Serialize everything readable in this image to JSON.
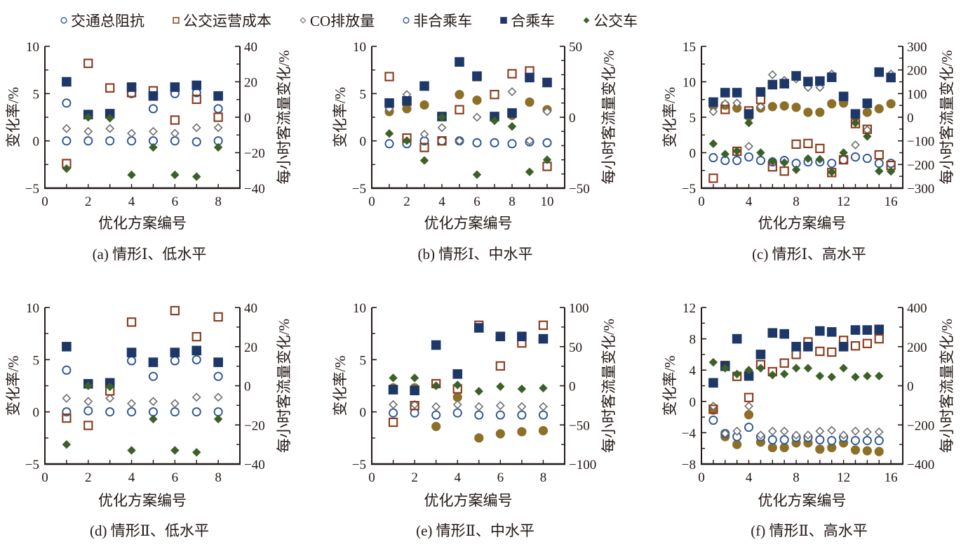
{
  "legend": [
    {
      "label": "交通总阻抗",
      "marker": "open-circle",
      "color": "#2b5597"
    },
    {
      "label": "公交运营成本",
      "marker": "open-square",
      "color": "#8b3a1a"
    },
    {
      "label": "CO排放量",
      "marker": "open-diamond",
      "color": "#6e6e6e"
    },
    {
      "label": "非合乘车",
      "marker": "open-circle",
      "color": "#2b5597"
    },
    {
      "label": "合乘车",
      "marker": "filled-square",
      "color": "#1c3768"
    },
    {
      "label": "公交车",
      "marker": "filled-diamond",
      "color": "#3b6128"
    }
  ],
  "colors": {
    "axis": "#231815",
    "impedance_filled": "#8c7028"
  },
  "chart_data": [
    {
      "type": "scatter",
      "id": "a",
      "caption": "(a)  情形Ⅰ、低水平",
      "xlabel": "优化方案编号",
      "ylabel": "变化率/%",
      "y2label": "每小时客流量变化/%",
      "xlim": [
        0,
        9
      ],
      "xticks": [
        0,
        2,
        4,
        6,
        8
      ],
      "ylim": [
        -5,
        10
      ],
      "yticks": [
        -5,
        0,
        5,
        10
      ],
      "y2lim": [
        -40,
        40
      ],
      "y2ticks": [
        -40,
        -20,
        0,
        20,
        40
      ],
      "x": [
        1,
        2,
        3,
        4,
        5,
        6,
        7,
        8
      ],
      "series": [
        {
          "name": "交通总阻抗",
          "axis": "left",
          "marker": "open-circle",
          "values": [
            4.0,
            null,
            null,
            5.0,
            3.4,
            5.0,
            5.1,
            3.4
          ]
        },
        {
          "name": "公交运营成本",
          "axis": "left",
          "marker": "open-square",
          "values": [
            -2.4,
            8.2,
            5.6,
            5.1,
            5.3,
            2.2,
            4.4,
            2.5
          ]
        },
        {
          "name": "CO排放量",
          "axis": "left",
          "marker": "open-diamond",
          "values": [
            1.3,
            1.0,
            1.3,
            0.8,
            1.0,
            0.8,
            1.4,
            1.4
          ]
        },
        {
          "name": "非合乘车",
          "axis": "left",
          "marker": "open-circle",
          "values": [
            0.0,
            0.0,
            0.0,
            0.0,
            0.0,
            0.0,
            -0.1,
            0.0
          ]
        },
        {
          "name": "合乘车",
          "axis": "right",
          "marker": "filled-square",
          "values": [
            20.0,
            1.5,
            2.0,
            17.0,
            12.0,
            17.0,
            18.0,
            12.0
          ]
        },
        {
          "name": "公交车",
          "axis": "right",
          "marker": "filled-diamond",
          "values": [
            -29.0,
            0.0,
            -0.5,
            -32.5,
            -17.0,
            -32.5,
            -33.5,
            -17.0
          ]
        }
      ]
    },
    {
      "type": "scatter",
      "id": "b",
      "caption": "(b)  情形Ⅰ、中水平",
      "xlabel": "优化方案编号",
      "ylabel": "变化率/%",
      "y2label": "每小时客流量变化/%",
      "xlim": [
        0,
        11
      ],
      "xticks": [
        0,
        2,
        4,
        6,
        8,
        10
      ],
      "ylim": [
        -5,
        10
      ],
      "yticks": [
        -5,
        0,
        5,
        10
      ],
      "y2lim": [
        -50,
        50
      ],
      "y2ticks": [
        -50,
        0,
        50
      ],
      "x": [
        1,
        2,
        3,
        4,
        5,
        6,
        7,
        8,
        9,
        10
      ],
      "series": [
        {
          "name": "交通总阻抗",
          "axis": "left",
          "marker": "filled-circle",
          "values": [
            3.1,
            3.4,
            3.8,
            null,
            4.9,
            4.3,
            null,
            2.7,
            4.1,
            3.3
          ]
        },
        {
          "name": "公交运营成本",
          "axis": "left",
          "marker": "open-square",
          "values": [
            6.8,
            0.3,
            -0.7,
            0.0,
            3.3,
            6.8,
            4.9,
            7.1,
            7.4,
            -2.7
          ]
        },
        {
          "name": "CO排放量",
          "axis": "left",
          "marker": "open-diamond",
          "values": [
            3.4,
            4.9,
            0.7,
            1.4,
            0.0,
            2.5,
            null,
            5.2,
            0.0,
            3.1
          ]
        },
        {
          "name": "非合乘车",
          "axis": "left",
          "marker": "open-circle",
          "values": [
            -0.3,
            -0.3,
            0.0,
            0.0,
            0.0,
            -0.2,
            -0.2,
            -0.3,
            -0.1,
            -0.2
          ]
        },
        {
          "name": "合乘车",
          "axis": "right",
          "marker": "filled-square",
          "values": [
            10.0,
            11.5,
            22.0,
            0.5,
            39.0,
            29.0,
            0.5,
            3.0,
            28.0,
            24.5
          ]
        },
        {
          "name": "公交车",
          "axis": "right",
          "marker": "filled-diamond",
          "values": [
            -11.5,
            -16.5,
            -30.5,
            0.0,
            null,
            -40.5,
            -2.5,
            -6.5,
            -38.5,
            -30.0
          ]
        }
      ]
    },
    {
      "type": "scatter",
      "id": "c",
      "caption": "(c)  情形Ⅰ、高水平",
      "xlabel": "优化方案编号",
      "ylabel": "变化率/%",
      "y2label": "每小时客流量变化/%",
      "xlim": [
        0,
        17
      ],
      "xticks": [
        0,
        4,
        8,
        12,
        16
      ],
      "ylim": [
        -5,
        15
      ],
      "yticks": [
        -5,
        0,
        5,
        10,
        15
      ],
      "y2lim": [
        -300,
        300
      ],
      "y2ticks": [
        -300,
        -200,
        -100,
        0,
        100,
        200,
        300
      ],
      "x": [
        1,
        2,
        3,
        4,
        5,
        6,
        7,
        8,
        9,
        10,
        11,
        12,
        13,
        14,
        15,
        16
      ],
      "series": [
        {
          "name": "交通总阻抗",
          "axis": "left",
          "marker": "filled-circle",
          "values": [
            6.6,
            6.7,
            6.3,
            5.1,
            6.3,
            6.5,
            6.6,
            6.4,
            5.7,
            5.7,
            6.9,
            7.0,
            5.3,
            5.7,
            6.2,
            6.9
          ]
        },
        {
          "name": "公交运营成本",
          "axis": "left",
          "marker": "open-square",
          "values": [
            -3.6,
            6.1,
            0.2,
            5.9,
            7.5,
            -2.0,
            -2.6,
            1.2,
            1.3,
            0.6,
            -2.8,
            -1.0,
            4.1,
            3.3,
            -0.3,
            -1.8
          ]
        },
        {
          "name": "CO排放量",
          "axis": "left",
          "marker": "open-diamond",
          "values": [
            5.8,
            6.9,
            7.0,
            0.9,
            6.5,
            11.0,
            10.2,
            10.4,
            9.2,
            9.2,
            11.1,
            null,
            1.1,
            3.2,
            11.4,
            11.1
          ]
        },
        {
          "name": "非合乘车",
          "axis": "left",
          "marker": "open-circle",
          "values": [
            -0.7,
            -1.1,
            -1.1,
            -0.6,
            -1.1,
            -1.3,
            -1.1,
            -1.5,
            -1.3,
            -1.3,
            -1.5,
            -1.0,
            -0.6,
            -0.8,
            -1.5,
            -1.5
          ]
        },
        {
          "name": "合乘车",
          "axis": "right",
          "marker": "filled-square",
          "values": [
            64,
            104,
            104,
            14,
            107,
            138,
            142,
            175,
            151,
            153,
            169,
            88,
            14,
            59,
            191,
            168
          ]
        },
        {
          "name": "公交车",
          "axis": "right",
          "marker": "filled-diamond",
          "values": [
            -112,
            -156,
            -143,
            -24,
            -150,
            -186,
            -192,
            -222,
            -175,
            -178,
            -232,
            -150,
            -24,
            -81,
            -228,
            -229
          ]
        }
      ]
    },
    {
      "type": "scatter",
      "id": "d",
      "caption": "(d)  情形Ⅱ、低水平",
      "xlabel": "优化方案编号",
      "ylabel": "变化率/%",
      "y2label": "每小时客流量变化/%",
      "xlim": [
        0,
        9
      ],
      "xticks": [
        0,
        2,
        4,
        6,
        8
      ],
      "ylim": [
        -5,
        10
      ],
      "yticks": [
        -5,
        0,
        5,
        10
      ],
      "y2lim": [
        -40,
        40
      ],
      "y2ticks": [
        -40,
        -20,
        0,
        20,
        40
      ],
      "x": [
        1,
        2,
        3,
        4,
        5,
        6,
        7,
        8
      ],
      "series": [
        {
          "name": "交通总阻抗",
          "axis": "left",
          "marker": "open-circle",
          "values": [
            4.0,
            null,
            null,
            4.9,
            3.4,
            4.9,
            5.0,
            3.4
          ]
        },
        {
          "name": "公交运营成本",
          "axis": "left",
          "marker": "open-square",
          "values": [
            -0.6,
            -1.3,
            2.0,
            8.6,
            null,
            9.7,
            7.2,
            9.1
          ]
        },
        {
          "name": "CO排放量",
          "axis": "left",
          "marker": "open-diamond",
          "values": [
            1.3,
            1.0,
            1.3,
            0.8,
            1.0,
            0.8,
            1.4,
            1.4
          ]
        },
        {
          "name": "非合乘车",
          "axis": "left",
          "marker": "open-circle",
          "values": [
            0.0,
            0.1,
            0.0,
            0.0,
            0.0,
            0.0,
            0.0,
            0.0
          ]
        },
        {
          "name": "合乘车",
          "axis": "right",
          "marker": "filled-square",
          "values": [
            20.0,
            1.0,
            1.5,
            17.0,
            12.0,
            17.0,
            18.0,
            12.0
          ]
        },
        {
          "name": "公交车",
          "axis": "right",
          "marker": "filled-diamond",
          "values": [
            -30.0,
            0.0,
            -0.5,
            -33.0,
            -17.0,
            -33.0,
            -34.0,
            -17.0
          ]
        }
      ]
    },
    {
      "type": "scatter",
      "id": "e",
      "caption": "(e)  情形Ⅱ、中水平",
      "xlabel": "优化方案编号",
      "ylabel": "变化率/%",
      "y2label": "每小时客流量变化/%",
      "xlim": [
        0,
        9
      ],
      "xticks": [
        0,
        2,
        4,
        6,
        8
      ],
      "ylim": [
        -5,
        10
      ],
      "yticks": [
        -5,
        0,
        5,
        10
      ],
      "y2lim": [
        -100,
        100
      ],
      "y2ticks": [
        -100,
        -50,
        0,
        50,
        100
      ],
      "x": [
        1,
        2,
        3,
        4,
        5,
        6,
        7,
        8
      ],
      "series": [
        {
          "name": "交通总阻抗",
          "axis": "left",
          "marker": "filled-circle",
          "values": [
            2.3,
            2.3,
            -1.4,
            1.4,
            -2.5,
            -2.1,
            -1.9,
            -1.8
          ]
        },
        {
          "name": "公交运营成本",
          "axis": "left",
          "marker": "open-square",
          "values": [
            -1.0,
            0.6,
            2.7,
            2.2,
            8.3,
            4.4,
            6.6,
            8.3
          ]
        },
        {
          "name": "CO排放量",
          "axis": "left",
          "marker": "open-diamond",
          "values": [
            0.7,
            0.7,
            0.5,
            0.7,
            0.5,
            0.6,
            0.5,
            0.5
          ]
        },
        {
          "name": "非合乘车",
          "axis": "left",
          "marker": "open-circle",
          "values": [
            -0.1,
            -0.1,
            -0.3,
            -0.1,
            -0.3,
            -0.3,
            -0.3,
            -0.3
          ]
        },
        {
          "name": "合乘车",
          "axis": "right",
          "marker": "filled-square",
          "values": [
            -5,
            -6,
            52,
            15,
            74,
            63,
            63,
            60
          ]
        },
        {
          "name": "公交车",
          "axis": "right",
          "marker": "filled-diamond",
          "values": [
            10,
            10,
            0,
            1,
            -7,
            -1,
            -4,
            -3
          ]
        }
      ]
    },
    {
      "type": "scatter",
      "id": "f",
      "caption": "(f)  情形Ⅱ、高水平",
      "xlabel": "优化方案编号",
      "ylabel": "变化率/%",
      "y2label": "每小时客流量变化/%",
      "xlim": [
        0,
        17
      ],
      "xticks": [
        0,
        4,
        8,
        12,
        16
      ],
      "ylim": [
        -8,
        12
      ],
      "yticks": [
        -8,
        -4,
        0,
        4,
        8,
        12
      ],
      "y2lim": [
        -400,
        400
      ],
      "y2ticks": [
        -400,
        -200,
        0,
        200,
        400
      ],
      "x": [
        1,
        2,
        3,
        4,
        5,
        6,
        7,
        8,
        9,
        10,
        11,
        12,
        13,
        14,
        15
      ],
      "series": [
        {
          "name": "交通总阻抗",
          "axis": "left",
          "marker": "filled-circle",
          "values": [
            -1.1,
            -4.5,
            -5.5,
            -1.7,
            -5.2,
            -5.9,
            -5.9,
            -5.3,
            -5.3,
            -6.1,
            -5.9,
            -5.3,
            -6.2,
            -6.3,
            -6.4
          ]
        },
        {
          "name": "公交运营成本",
          "axis": "left",
          "marker": "open-square",
          "values": [
            -1.0,
            4.6,
            3.2,
            0.5,
            4.7,
            3.8,
            4.9,
            6.0,
            7.6,
            6.4,
            6.3,
            7.8,
            7.1,
            7.4,
            8.0
          ]
        },
        {
          "name": "CO排放量",
          "axis": "left",
          "marker": "open-diamond",
          "values": [
            -0.6,
            -4.1,
            -3.8,
            -0.6,
            -4.3,
            -3.8,
            -3.8,
            -4.3,
            -4.3,
            -3.8,
            -3.7,
            -4.3,
            -3.8,
            -3.9,
            -3.9
          ]
        },
        {
          "name": "非合乘车",
          "axis": "left",
          "marker": "open-circle",
          "values": [
            -2.4,
            -4.1,
            -4.5,
            -3.3,
            -4.5,
            -4.9,
            -4.9,
            -4.6,
            -4.6,
            -4.9,
            -5.0,
            -4.6,
            -5.0,
            -5.0,
            -5.0
          ]
        },
        {
          "name": "合乘车",
          "axis": "right",
          "marker": "filled-square",
          "values": [
            15,
            100,
            240,
            50,
            160,
            270,
            265,
            200,
            200,
            280,
            275,
            200,
            285,
            285,
            288
          ]
        },
        {
          "name": "公交车",
          "axis": "right",
          "marker": "filled-diamond",
          "values": [
            120,
            90,
            60,
            80,
            90,
            55,
            60,
            90,
            90,
            50,
            45,
            90,
            45,
            50,
            50
          ]
        }
      ]
    }
  ]
}
